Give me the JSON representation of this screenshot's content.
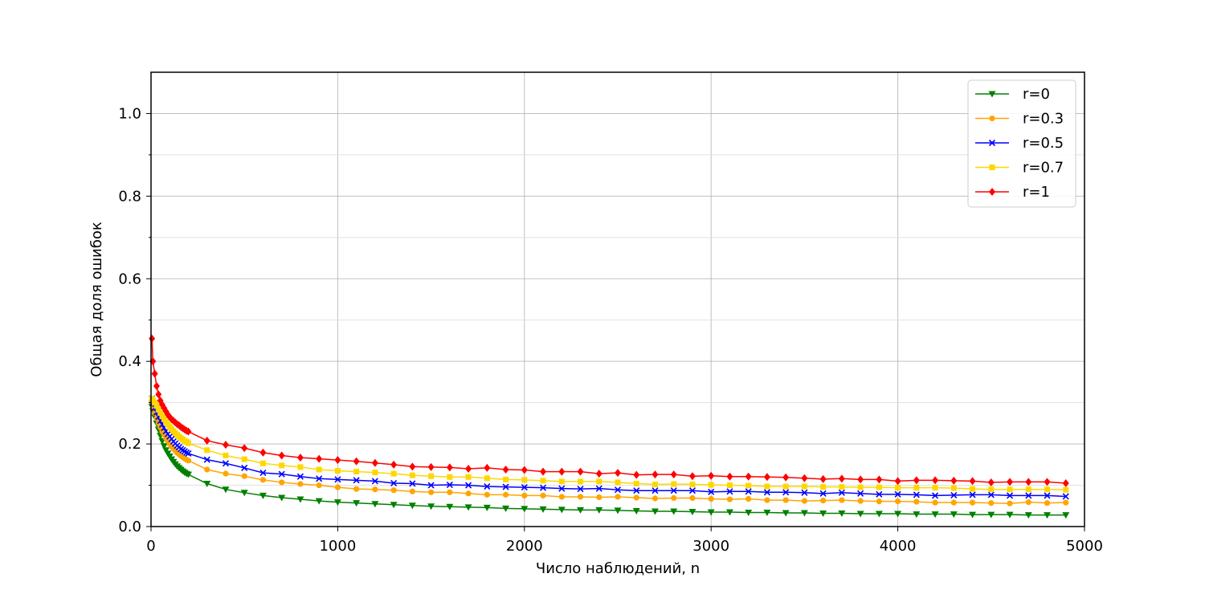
{
  "chart_data": {
    "type": "line",
    "title": "",
    "xlabel": "Число наблюдений, n",
    "ylabel": "Общая доля ошибок",
    "xlim": [
      0,
      5000
    ],
    "ylim": [
      0,
      1.1
    ],
    "x_ticks": [
      0,
      1000,
      2000,
      3000,
      4000,
      5000
    ],
    "x_tick_labels": [
      "0",
      "1000",
      "2000",
      "3000",
      "4000",
      "5000"
    ],
    "y_ticks": [
      0,
      0.2,
      0.4,
      0.6,
      0.8,
      1.0
    ],
    "y_tick_labels": [
      "0.0",
      "0.2",
      "0.4",
      "0.6",
      "0.8",
      "1.0"
    ],
    "y_minor_ticks": [
      0.1,
      0.3,
      0.5,
      0.7,
      0.9
    ],
    "grid": true,
    "legend_position": "top-right",
    "x": [
      5,
      10,
      20,
      30,
      40,
      50,
      60,
      70,
      80,
      90,
      100,
      110,
      120,
      130,
      140,
      150,
      160,
      170,
      180,
      190,
      200,
      300,
      400,
      500,
      600,
      700,
      800,
      900,
      1000,
      1100,
      1200,
      1300,
      1400,
      1500,
      1600,
      1700,
      1800,
      1900,
      2000,
      2100,
      2200,
      2300,
      2400,
      2500,
      2600,
      2700,
      2800,
      2900,
      3000,
      3100,
      3200,
      3300,
      3400,
      3500,
      3600,
      3700,
      3800,
      3900,
      4000,
      4100,
      4200,
      4300,
      4400,
      4500,
      4600,
      4700,
      4800,
      4900
    ],
    "series": [
      {
        "name": "r=0",
        "color": "#008000",
        "marker": "triangle-down",
        "values": [
          0.29,
          0.28,
          0.265,
          0.25,
          0.235,
          0.22,
          0.207,
          0.195,
          0.185,
          0.177,
          0.17,
          0.163,
          0.157,
          0.151,
          0.146,
          0.142,
          0.138,
          0.134,
          0.131,
          0.128,
          0.126,
          0.104,
          0.09,
          0.082,
          0.075,
          0.07,
          0.066,
          0.062,
          0.059,
          0.057,
          0.055,
          0.053,
          0.051,
          0.049,
          0.048,
          0.047,
          0.046,
          0.044,
          0.043,
          0.042,
          0.041,
          0.04,
          0.04,
          0.039,
          0.038,
          0.037,
          0.037,
          0.036,
          0.035,
          0.035,
          0.034,
          0.034,
          0.033,
          0.033,
          0.032,
          0.032,
          0.031,
          0.031,
          0.031,
          0.03,
          0.03,
          0.03,
          0.029,
          0.029,
          0.029,
          0.028,
          0.028,
          0.028
        ]
      },
      {
        "name": "r=0.3",
        "color": "#ffa500",
        "marker": "circle",
        "values": [
          0.3,
          0.29,
          0.275,
          0.262,
          0.25,
          0.24,
          0.23,
          0.222,
          0.214,
          0.207,
          0.2,
          0.194,
          0.189,
          0.184,
          0.179,
          0.175,
          0.171,
          0.168,
          0.165,
          0.162,
          0.16,
          0.138,
          0.128,
          0.122,
          0.113,
          0.107,
          0.103,
          0.1,
          0.095,
          0.091,
          0.09,
          0.088,
          0.085,
          0.083,
          0.083,
          0.08,
          0.077,
          0.077,
          0.075,
          0.075,
          0.072,
          0.072,
          0.071,
          0.072,
          0.07,
          0.068,
          0.069,
          0.069,
          0.067,
          0.066,
          0.067,
          0.064,
          0.064,
          0.062,
          0.063,
          0.064,
          0.062,
          0.061,
          0.061,
          0.06,
          0.058,
          0.058,
          0.058,
          0.057,
          0.056,
          0.059,
          0.057,
          0.058
        ]
      },
      {
        "name": "r=0.5",
        "color": "#0000ff",
        "marker": "x",
        "values": [
          0.31,
          0.3,
          0.288,
          0.277,
          0.266,
          0.256,
          0.247,
          0.239,
          0.231,
          0.224,
          0.218,
          0.212,
          0.206,
          0.201,
          0.196,
          0.192,
          0.188,
          0.185,
          0.182,
          0.179,
          0.177,
          0.162,
          0.153,
          0.142,
          0.13,
          0.127,
          0.121,
          0.116,
          0.114,
          0.112,
          0.11,
          0.105,
          0.104,
          0.1,
          0.101,
          0.1,
          0.097,
          0.096,
          0.095,
          0.094,
          0.092,
          0.091,
          0.092,
          0.089,
          0.087,
          0.087,
          0.087,
          0.087,
          0.084,
          0.085,
          0.085,
          0.083,
          0.083,
          0.082,
          0.08,
          0.082,
          0.08,
          0.078,
          0.078,
          0.077,
          0.075,
          0.076,
          0.077,
          0.077,
          0.075,
          0.075,
          0.075,
          0.073
        ]
      },
      {
        "name": "r=0.7",
        "color": "#ffd700",
        "marker": "square",
        "values": [
          0.31,
          0.305,
          0.3,
          0.292,
          0.283,
          0.275,
          0.267,
          0.26,
          0.253,
          0.247,
          0.241,
          0.236,
          0.231,
          0.226,
          0.222,
          0.218,
          0.214,
          0.211,
          0.208,
          0.205,
          0.202,
          0.185,
          0.172,
          0.163,
          0.153,
          0.148,
          0.144,
          0.138,
          0.135,
          0.133,
          0.131,
          0.128,
          0.124,
          0.122,
          0.12,
          0.12,
          0.117,
          0.114,
          0.113,
          0.111,
          0.109,
          0.109,
          0.109,
          0.107,
          0.104,
          0.102,
          0.103,
          0.102,
          0.101,
          0.1,
          0.099,
          0.097,
          0.097,
          0.097,
          0.096,
          0.096,
          0.095,
          0.095,
          0.094,
          0.094,
          0.094,
          0.093,
          0.091,
          0.09,
          0.09,
          0.09,
          0.09,
          0.089
        ]
      },
      {
        "name": "r=1",
        "color": "#ff0000",
        "marker": "diamond",
        "values": [
          0.455,
          0.4,
          0.37,
          0.34,
          0.32,
          0.305,
          0.295,
          0.287,
          0.279,
          0.271,
          0.265,
          0.26,
          0.256,
          0.252,
          0.248,
          0.245,
          0.241,
          0.238,
          0.235,
          0.232,
          0.23,
          0.208,
          0.198,
          0.19,
          0.179,
          0.172,
          0.167,
          0.164,
          0.161,
          0.158,
          0.154,
          0.15,
          0.145,
          0.144,
          0.143,
          0.14,
          0.142,
          0.138,
          0.137,
          0.133,
          0.133,
          0.133,
          0.128,
          0.13,
          0.125,
          0.126,
          0.126,
          0.122,
          0.123,
          0.121,
          0.121,
          0.12,
          0.119,
          0.117,
          0.115,
          0.116,
          0.114,
          0.114,
          0.11,
          0.112,
          0.112,
          0.111,
          0.11,
          0.107,
          0.108,
          0.108,
          0.108,
          0.105
        ]
      }
    ]
  }
}
